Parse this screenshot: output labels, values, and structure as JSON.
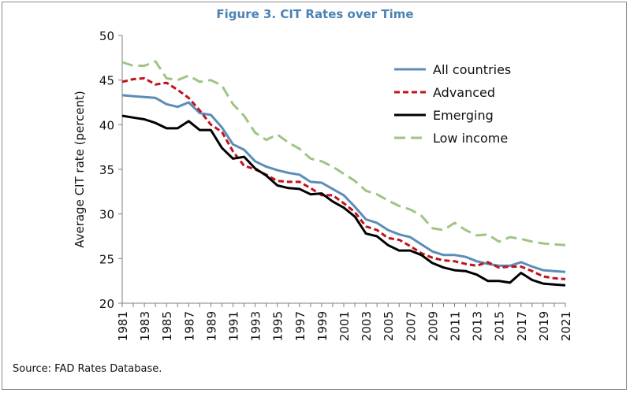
{
  "chart_data": {
    "type": "line",
    "title": "Figure 3. CIT Rates over Time",
    "ylabel": "Average CIT rate (percent)",
    "xlabel": "",
    "ylim": [
      20,
      50
    ],
    "yticks": [
      20,
      25,
      30,
      35,
      40,
      45,
      50
    ],
    "xlim": [
      1981,
      2021
    ],
    "xticks": [
      1981,
      1983,
      1985,
      1987,
      1989,
      1991,
      1993,
      1995,
      1997,
      1999,
      2001,
      2003,
      2005,
      2007,
      2009,
      2011,
      2013,
      2015,
      2017,
      2019,
      2021
    ],
    "grid": false,
    "legend": "top-right",
    "x": [
      1981,
      1982,
      1983,
      1984,
      1985,
      1986,
      1987,
      1988,
      1989,
      1990,
      1991,
      1992,
      1993,
      1994,
      1995,
      1996,
      1997,
      1998,
      1999,
      2000,
      2001,
      2002,
      2003,
      2004,
      2005,
      2006,
      2007,
      2008,
      2009,
      2010,
      2011,
      2012,
      2013,
      2014,
      2015,
      2016,
      2017,
      2018,
      2019,
      2020,
      2021
    ],
    "series": [
      {
        "name": "All countries",
        "color": "#5b8db8",
        "dash": "solid",
        "values": [
          43.3,
          43.2,
          43.1,
          43.0,
          42.3,
          42.0,
          42.5,
          41.3,
          41.1,
          39.7,
          37.8,
          37.2,
          35.9,
          35.3,
          34.9,
          34.6,
          34.4,
          33.6,
          33.5,
          32.8,
          32.1,
          30.8,
          29.4,
          29.0,
          28.2,
          27.7,
          27.4,
          26.6,
          25.8,
          25.4,
          25.4,
          25.2,
          24.7,
          24.4,
          24.2,
          24.2,
          24.6,
          24.1,
          23.7,
          23.6,
          23.5
        ]
      },
      {
        "name": "Advanced",
        "color": "#c0141c",
        "dash": "dashed",
        "values": [
          44.8,
          45.1,
          45.2,
          44.5,
          44.7,
          43.9,
          43.0,
          41.6,
          40.0,
          39.2,
          37.0,
          35.4,
          35.0,
          34.4,
          33.7,
          33.6,
          33.6,
          32.9,
          32.1,
          32.1,
          31.2,
          30.2,
          28.6,
          28.2,
          27.3,
          27.1,
          26.4,
          25.6,
          25.1,
          24.8,
          24.7,
          24.4,
          24.2,
          24.6,
          24.0,
          24.1,
          24.1,
          23.6,
          23.0,
          22.8,
          22.7
        ]
      },
      {
        "name": "Emerging",
        "color": "#000000",
        "dash": "solid",
        "values": [
          41.0,
          40.8,
          40.6,
          40.2,
          39.6,
          39.6,
          40.4,
          39.4,
          39.4,
          37.4,
          36.2,
          36.4,
          35.1,
          34.3,
          33.2,
          32.9,
          32.8,
          32.2,
          32.3,
          31.4,
          30.7,
          29.7,
          27.8,
          27.5,
          26.5,
          25.9,
          25.9,
          25.4,
          24.5,
          24.0,
          23.7,
          23.6,
          23.2,
          22.5,
          22.5,
          22.3,
          23.4,
          22.6,
          22.2,
          22.1,
          22.0
        ]
      },
      {
        "name": "Low income",
        "color": "#9ec582",
        "dash": "longdash",
        "values": [
          47.0,
          46.6,
          46.6,
          47.1,
          45.2,
          45.0,
          45.5,
          44.8,
          45.0,
          44.4,
          42.3,
          41.0,
          39.1,
          38.3,
          38.9,
          38.0,
          37.3,
          36.2,
          35.9,
          35.3,
          34.5,
          33.7,
          32.6,
          32.2,
          31.5,
          30.9,
          30.5,
          29.8,
          28.4,
          28.2,
          29.0,
          28.2,
          27.6,
          27.7,
          26.9,
          27.4,
          27.2,
          26.9,
          26.7,
          26.6,
          26.5
        ]
      }
    ],
    "source": "Source: FAD Rates Database."
  }
}
